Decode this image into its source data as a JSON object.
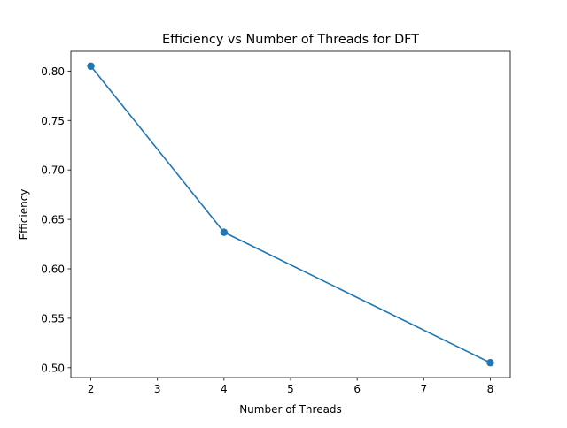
{
  "chart_data": {
    "type": "line",
    "title": "Efficiency vs Number of Threads for DFT",
    "xlabel": "Number of Threads",
    "ylabel": "Efficiency",
    "x": [
      2,
      4,
      8
    ],
    "series": [
      {
        "values": [
          0.805,
          0.637,
          0.505
        ],
        "color": "#1f77b4",
        "marker": "circle"
      }
    ],
    "xlim": [
      1.7,
      8.3
    ],
    "ylim": [
      0.49,
      0.82
    ],
    "xticks": [
      2,
      3,
      4,
      5,
      6,
      7,
      8
    ],
    "xtick_labels": [
      "2",
      "3",
      "4",
      "5",
      "6",
      "7",
      "8"
    ],
    "yticks": [
      0.5,
      0.55,
      0.6,
      0.65,
      0.7,
      0.75,
      0.8
    ],
    "ytick_labels": [
      "0.50",
      "0.55",
      "0.60",
      "0.65",
      "0.70",
      "0.75",
      "0.80"
    ],
    "grid": false,
    "legend": false
  }
}
